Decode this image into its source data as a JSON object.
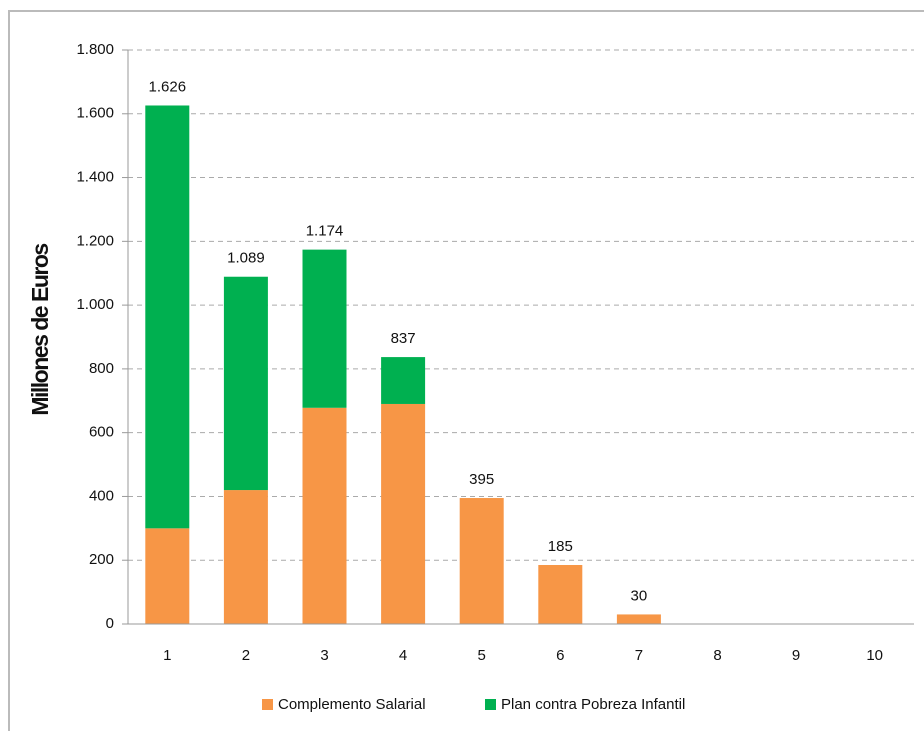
{
  "chart_data": {
    "type": "stacked_bar",
    "y_label": "Millones de Euros",
    "categories": [
      "1",
      "2",
      "3",
      "4",
      "5",
      "6",
      "7",
      "8",
      "9",
      "10"
    ],
    "series": [
      {
        "name": "Complemento Salarial",
        "color": "#f79646",
        "values": [
          300,
          420,
          678,
          690,
          395,
          185,
          30,
          0,
          0,
          0
        ]
      },
      {
        "name": "Plan contra Pobreza Infantil",
        "color": "#00b050",
        "values": [
          1326,
          669,
          496,
          147,
          0,
          0,
          0,
          0,
          0,
          0
        ]
      }
    ],
    "totals": [
      1626,
      1089,
      1174,
      837,
      395,
      185,
      30
    ],
    "total_labels": [
      "1.626",
      "1.089",
      "1.174",
      "837",
      "395",
      "185",
      "30"
    ],
    "ylim": [
      0,
      1800
    ],
    "yticks": [
      0,
      200,
      400,
      600,
      800,
      {
        "value": 1000,
        "label": "1.000"
      },
      {
        "value": 1200,
        "label": "1.200"
      },
      {
        "value": 1400,
        "label": "1.400"
      },
      {
        "value": 1600,
        "label": "1.600"
      },
      {
        "value": 1800,
        "label": "1.800"
      }
    ],
    "grid": true,
    "legend": "bottom"
  }
}
